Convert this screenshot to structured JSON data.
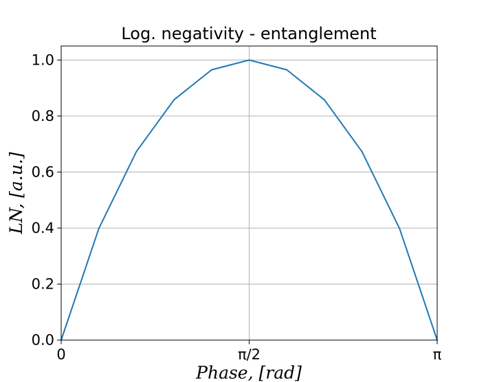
{
  "chart_data": {
    "type": "line",
    "title": "Log. negativity - entanglement",
    "xlabel": "Phase, [rad]",
    "ylabel": "LN, [a.u.]",
    "xlim": [
      0,
      3.14159
    ],
    "ylim": [
      0,
      1.05
    ],
    "x_ticks": [
      {
        "value": 0,
        "label": "0"
      },
      {
        "value": 1.5708,
        "label": "π/2"
      },
      {
        "value": 3.14159,
        "label": "π"
      }
    ],
    "y_ticks": [
      {
        "value": 0.0,
        "label": "0.0"
      },
      {
        "value": 0.2,
        "label": "0.2"
      },
      {
        "value": 0.4,
        "label": "0.4"
      },
      {
        "value": 0.6,
        "label": "0.6"
      },
      {
        "value": 0.8,
        "label": "0.8"
      },
      {
        "value": 1.0,
        "label": "1.0"
      }
    ],
    "grid": true,
    "series": [
      {
        "color": "#1f77b4",
        "x": [
          0,
          0.3142,
          0.6283,
          0.9425,
          1.2566,
          1.5708,
          1.885,
          2.1991,
          2.5133,
          2.8274,
          3.1416
        ],
        "y": [
          0.0,
          0.398,
          0.673,
          0.858,
          0.965,
          1.0,
          0.965,
          0.858,
          0.673,
          0.398,
          0.0
        ]
      }
    ]
  }
}
